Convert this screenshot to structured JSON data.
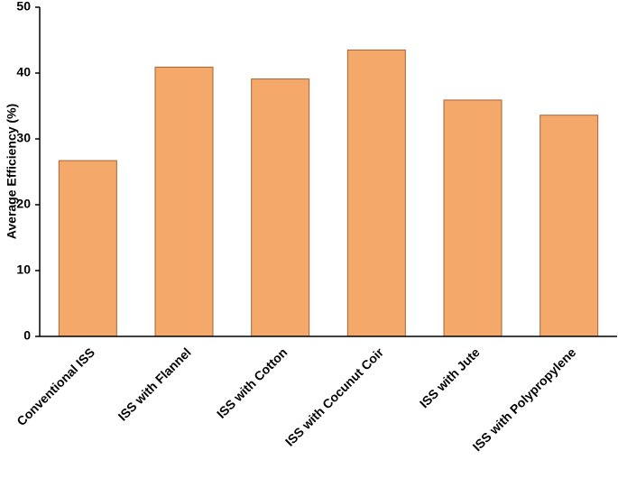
{
  "chart_data": {
    "type": "bar",
    "y_label": "Average Efficiency (%)",
    "categories": [
      "Conventional ISS",
      "ISS with Flannel",
      "ISS with Cotton",
      "ISS with Cocunut Coir",
      "ISS with Jute",
      "ISS with Polypropylene"
    ],
    "values": [
      26.7,
      40.9,
      39.1,
      43.5,
      35.9,
      33.6
    ],
    "color": "#f4a86a",
    "ylim": [
      0,
      50
    ],
    "yticks": [
      0,
      10,
      20,
      30,
      40,
      50
    ],
    "grid": false
  }
}
